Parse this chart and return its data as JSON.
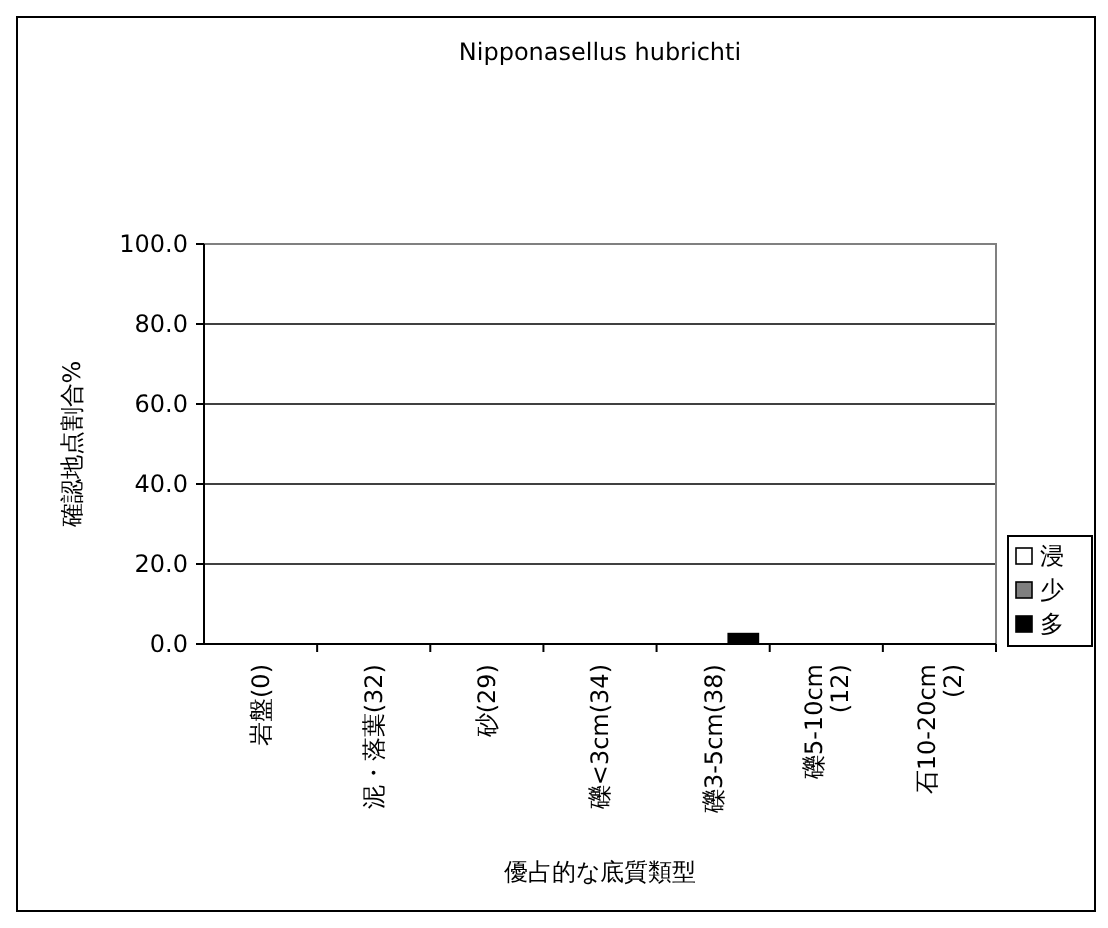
{
  "chart_data": {
    "type": "bar",
    "title": "Nipponasellus hubrichti",
    "xlabel": "優占的な底質類型",
    "ylabel": "確認地点割合%",
    "categories": [
      "岩盤(0)",
      "泥・落葉(32)",
      "砂(29)",
      "礫<3cm(34)",
      "礫3-5cm(38)",
      "礫5-10cm (12)",
      "石10-20cm (2)"
    ],
    "series": [
      {
        "name": "浸",
        "color": "#ffffff",
        "values": [
          0,
          0,
          0,
          0,
          0,
          0,
          0
        ]
      },
      {
        "name": "少",
        "color": "#808080",
        "values": [
          0,
          0,
          0,
          0,
          0,
          0,
          0
        ]
      },
      {
        "name": "多",
        "color": "#000000",
        "values": [
          0,
          0,
          0,
          0,
          2.6,
          0,
          0
        ]
      }
    ],
    "ylim": [
      0,
      100
    ],
    "yticks": [
      {
        "value": 0,
        "label": "0.0"
      },
      {
        "value": 20,
        "label": "20.0"
      },
      {
        "value": 40,
        "label": "40.0"
      },
      {
        "value": 60,
        "label": "60.0"
      },
      {
        "value": 80,
        "label": "80.0"
      },
      {
        "value": 100,
        "label": "100.0"
      }
    ],
    "grid": "y",
    "legend": "right"
  }
}
